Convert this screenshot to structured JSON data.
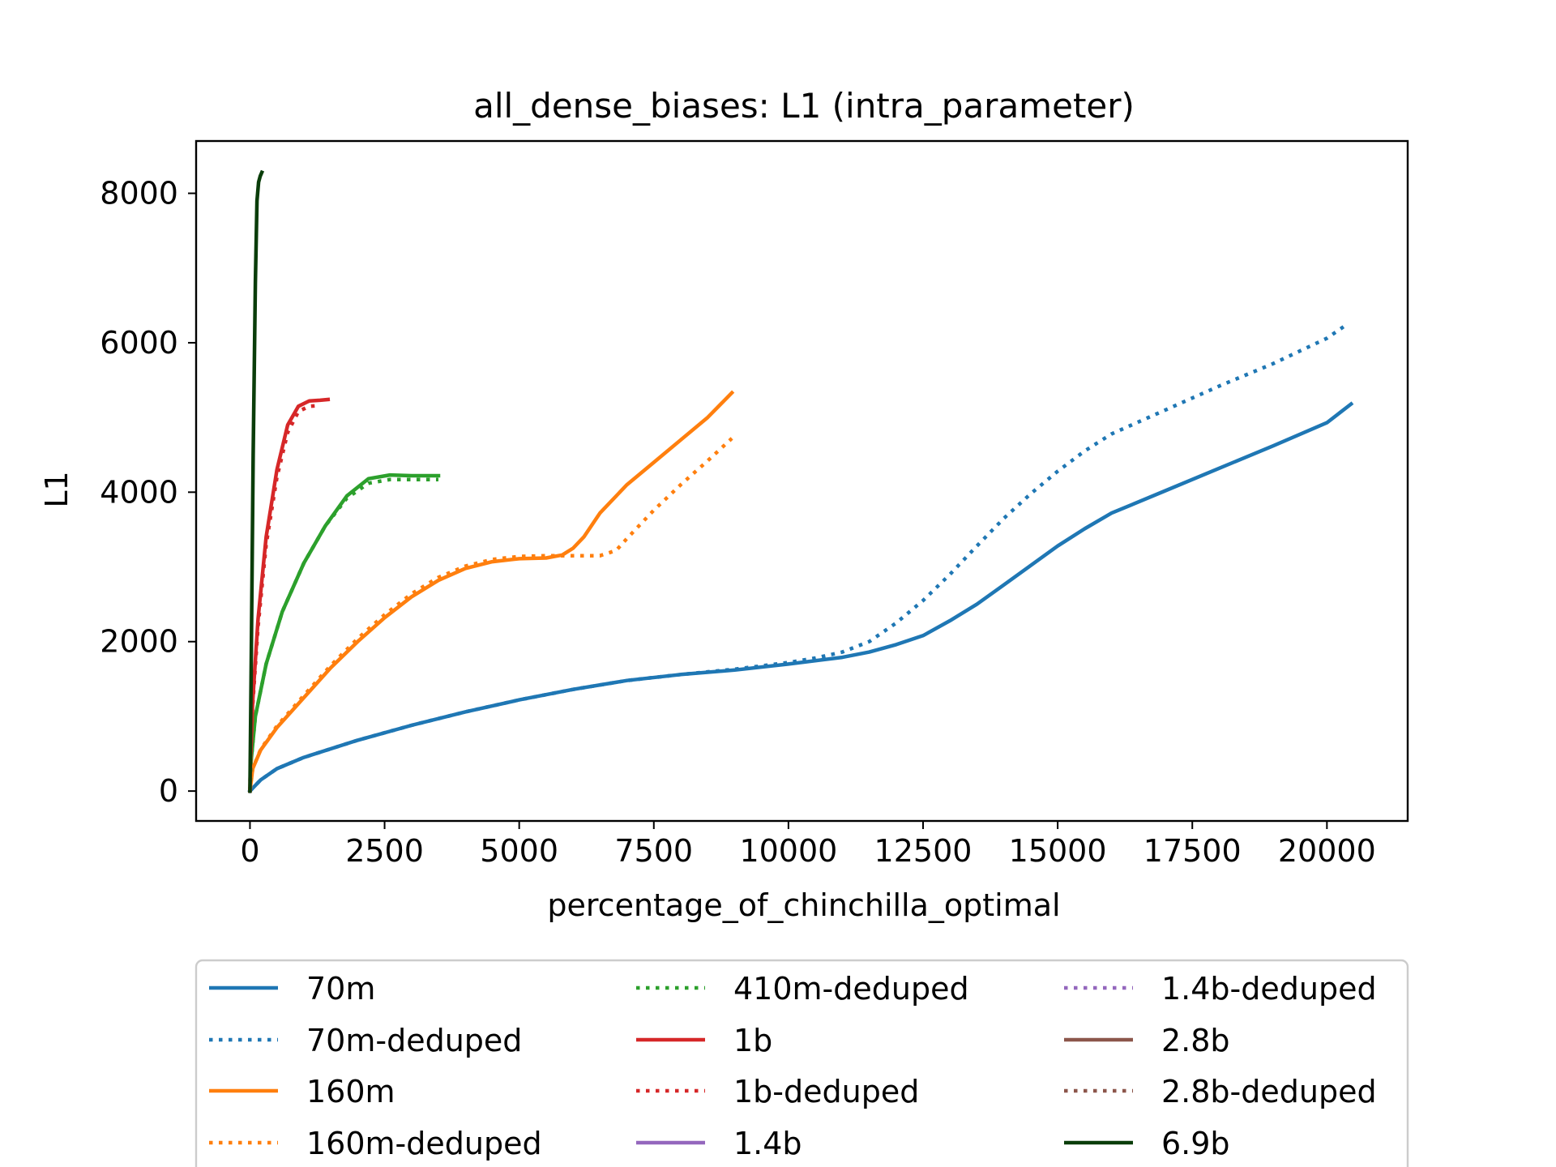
{
  "chart_data": {
    "type": "line",
    "title": "all_dense_biases: L1 (intra_parameter)",
    "xlabel": "percentage_of_chinchilla_optimal",
    "ylabel": "L1",
    "xlim": [
      -1000,
      21500
    ],
    "ylim": [
      -400,
      8700
    ],
    "xticks": [
      0,
      2500,
      5000,
      7500,
      10000,
      12500,
      15000,
      17500,
      20000
    ],
    "yticks": [
      0,
      2000,
      4000,
      6000,
      8000
    ],
    "grid": false,
    "legend_placement": "below-center",
    "legend_columns": 3,
    "series": [
      {
        "name": "70m",
        "color": "#1f77b4",
        "style": "solid",
        "x": [
          0,
          200,
          500,
          1000,
          2000,
          3000,
          4000,
          5000,
          6000,
          7000,
          8000,
          9000,
          10000,
          11000,
          11500,
          12000,
          12500,
          13000,
          13500,
          14000,
          14500,
          15000,
          15500,
          16000,
          17000,
          18000,
          19000,
          20000,
          20450
        ],
        "y": [
          0,
          150,
          300,
          450,
          680,
          880,
          1060,
          1220,
          1360,
          1480,
          1560,
          1620,
          1700,
          1790,
          1860,
          1960,
          2080,
          2280,
          2500,
          2760,
          3020,
          3280,
          3510,
          3720,
          4020,
          4320,
          4620,
          4930,
          5180
        ]
      },
      {
        "name": "70m-deduped",
        "color": "#1f77b4",
        "style": "dotted",
        "x": [
          0,
          200,
          500,
          1000,
          2000,
          3000,
          4000,
          5000,
          6000,
          7000,
          8000,
          9000,
          10000,
          10500,
          11000,
          11500,
          12000,
          12500,
          13000,
          13500,
          14000,
          14500,
          15000,
          15500,
          16000,
          17000,
          18000,
          19000,
          20000,
          20400
        ],
        "y": [
          0,
          150,
          300,
          450,
          680,
          880,
          1060,
          1220,
          1360,
          1480,
          1560,
          1630,
          1720,
          1780,
          1860,
          2000,
          2250,
          2550,
          2900,
          3280,
          3650,
          3980,
          4280,
          4550,
          4780,
          5100,
          5420,
          5720,
          6060,
          6260
        ]
      },
      {
        "name": "160m",
        "color": "#ff7f0e",
        "style": "solid",
        "x": [
          0,
          50,
          200,
          500,
          1000,
          1500,
          2000,
          2500,
          3000,
          3500,
          4000,
          4500,
          5000,
          5500,
          5800,
          6000,
          6200,
          6500,
          7000,
          7500,
          8000,
          8500,
          8950
        ],
        "y": [
          0,
          300,
          550,
          850,
          1250,
          1650,
          2000,
          2320,
          2600,
          2820,
          2980,
          3070,
          3110,
          3120,
          3160,
          3250,
          3400,
          3720,
          4100,
          4400,
          4700,
          5000,
          5330
        ]
      },
      {
        "name": "160m-deduped",
        "color": "#ff7f0e",
        "style": "dotted",
        "x": [
          0,
          50,
          200,
          500,
          1000,
          1500,
          2000,
          2500,
          3000,
          3500,
          4000,
          4500,
          5000,
          5500,
          6000,
          6500,
          6800,
          7000,
          7500,
          8000,
          8500,
          8950
        ],
        "y": [
          0,
          300,
          560,
          870,
          1280,
          1680,
          2040,
          2360,
          2640,
          2860,
          3010,
          3100,
          3140,
          3150,
          3150,
          3150,
          3220,
          3380,
          3760,
          4100,
          4420,
          4720
        ]
      },
      {
        "name": "410m-deduped",
        "color": "#2ca02c",
        "style": "dotted",
        "x": [
          0,
          20,
          100,
          300,
          600,
          1000,
          1400,
          1800,
          2200,
          2600,
          3000,
          3500
        ],
        "y": [
          0,
          400,
          1000,
          1700,
          2400,
          3050,
          3550,
          3920,
          4120,
          4170,
          4170,
          4170
        ]
      },
      {
        "name": "1b",
        "color": "#d62728",
        "style": "solid",
        "x": [
          0,
          10,
          50,
          150,
          300,
          500,
          700,
          900,
          1100,
          1300,
          1450
        ],
        "y": [
          0,
          400,
          1200,
          2300,
          3400,
          4300,
          4900,
          5150,
          5220,
          5230,
          5240
        ]
      },
      {
        "name": "1b-deduped",
        "color": "#d62728",
        "style": "dotted",
        "x": [
          0,
          10,
          50,
          150,
          300,
          500,
          700,
          900,
          1100,
          1300
        ],
        "y": [
          0,
          390,
          1150,
          2200,
          3300,
          4200,
          4800,
          5080,
          5150,
          5160
        ]
      },
      {
        "name": "1.4b",
        "color": "#9467bd",
        "style": "solid",
        "x": [],
        "y": []
      },
      {
        "name": "1.4b-deduped",
        "color": "#9467bd",
        "style": "dotted",
        "x": [],
        "y": []
      },
      {
        "name": "2.8b",
        "color": "#8c564b",
        "style": "solid",
        "x": [],
        "y": []
      },
      {
        "name": "2.8b-deduped",
        "color": "#8c564b",
        "style": "dotted",
        "x": [],
        "y": []
      },
      {
        "name": "6.9b",
        "color": "#0a3d0a",
        "style": "solid",
        "x": [
          0,
          20,
          60,
          100,
          130,
          160,
          190,
          220
        ],
        "y": [
          0,
          1500,
          4500,
          6800,
          7900,
          8150,
          8230,
          8280
        ]
      }
    ],
    "extra_series": [
      {
        "color": "#2ca02c",
        "style": "solid",
        "x": [
          0,
          20,
          100,
          300,
          600,
          1000,
          1400,
          1800,
          2200,
          2600,
          3000,
          3500
        ],
        "y": [
          0,
          400,
          1000,
          1700,
          2400,
          3050,
          3550,
          3950,
          4180,
          4230,
          4220,
          4220
        ]
      }
    ]
  }
}
